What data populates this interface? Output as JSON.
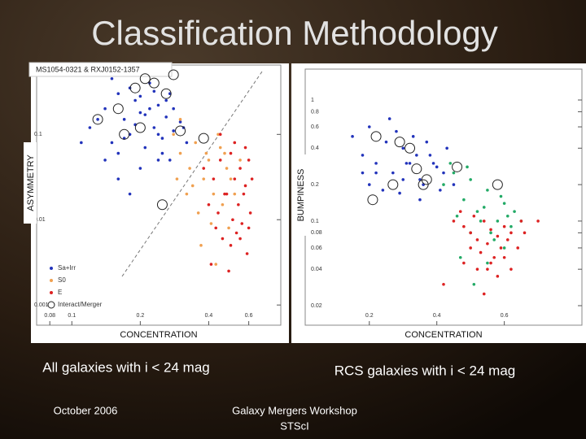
{
  "title": "Classification Methodology",
  "chart_data": [
    {
      "type": "scatter",
      "subtitle": "MS1054-0321 & RXJ0152-1357",
      "xlabel": "CONCENTRATION",
      "ylabel": "ASYMMETRY",
      "xscale": "log",
      "yscale": "log",
      "xlim": [
        0.07,
        0.83
      ],
      "ylim": [
        0.00058,
        0.65
      ],
      "xticks": [
        0.08,
        0.1,
        0.2,
        0.4,
        0.6
      ],
      "yticks": [
        0.001,
        0.01,
        0.1
      ],
      "legend": "lower left",
      "series": [
        {
          "name": "Sa+Irr",
          "color": "#2233bb",
          "marker": "dot",
          "x": [
            0.12,
            0.14,
            0.15,
            0.16,
            0.17,
            0.18,
            0.19,
            0.2,
            0.21,
            0.22,
            0.23,
            0.24,
            0.25,
            0.26,
            0.27,
            0.28,
            0.3,
            0.32,
            0.14,
            0.16,
            0.18,
            0.2,
            0.22,
            0.24,
            0.26,
            0.13,
            0.15,
            0.17,
            0.19,
            0.21,
            0.23,
            0.25,
            0.28,
            0.31,
            0.2,
            0.18,
            0.16,
            0.24,
            0.27,
            0.11
          ],
          "values": [
            0.12,
            0.2,
            0.08,
            0.3,
            0.15,
            0.1,
            0.25,
            0.18,
            0.07,
            0.4,
            0.12,
            0.22,
            0.09,
            0.16,
            0.3,
            0.11,
            0.14,
            0.08,
            0.05,
            0.06,
            0.35,
            0.28,
            0.2,
            0.05,
            0.25,
            0.15,
            0.45,
            0.09,
            0.13,
            0.17,
            0.32,
            0.06,
            0.2,
            0.12,
            0.04,
            0.02,
            0.03,
            0.1,
            0.05,
            0.08
          ]
        },
        {
          "name": "S0",
          "color": "#f0a050",
          "marker": "dot",
          "x": [
            0.28,
            0.3,
            0.33,
            0.35,
            0.38,
            0.4,
            0.42,
            0.45,
            0.48,
            0.5,
            0.32,
            0.36,
            0.41,
            0.46,
            0.52,
            0.3,
            0.34,
            0.39,
            0.44,
            0.55,
            0.37,
            0.43,
            0.49,
            0.29,
            0.47
          ],
          "values": [
            0.1,
            0.06,
            0.04,
            0.08,
            0.03,
            0.05,
            0.02,
            0.07,
            0.04,
            0.03,
            0.02,
            0.012,
            0.009,
            0.015,
            0.02,
            0.15,
            0.025,
            0.06,
            0.1,
            0.05,
            0.005,
            0.003,
            0.008,
            0.03,
            0.06
          ]
        },
        {
          "name": "E",
          "color": "#dd2222",
          "marker": "dot",
          "x": [
            0.38,
            0.42,
            0.45,
            0.48,
            0.5,
            0.52,
            0.55,
            0.58,
            0.6,
            0.62,
            0.4,
            0.44,
            0.47,
            0.51,
            0.54,
            0.57,
            0.61,
            0.43,
            0.46,
            0.5,
            0.53,
            0.56,
            0.59,
            0.41,
            0.49,
            0.55,
            0.6,
            0.45,
            0.52,
            0.58
          ],
          "values": [
            0.04,
            0.03,
            0.05,
            0.02,
            0.06,
            0.03,
            0.04,
            0.025,
            0.05,
            0.03,
            0.015,
            0.012,
            0.02,
            0.01,
            0.015,
            0.02,
            0.012,
            0.008,
            0.006,
            0.005,
            0.007,
            0.009,
            0.004,
            0.003,
            0.0025,
            0.006,
            0.008,
            0.1,
            0.08,
            0.07
          ]
        },
        {
          "name": "Interact/Merger",
          "color": "#222222",
          "marker": "open-circle",
          "x": [
            0.13,
            0.16,
            0.19,
            0.21,
            0.23,
            0.26,
            0.28,
            0.3,
            0.2,
            0.38,
            0.17,
            0.25
          ],
          "values": [
            0.15,
            0.2,
            0.35,
            0.45,
            0.4,
            0.3,
            0.5,
            0.11,
            0.12,
            0.09,
            0.1,
            0.015
          ]
        }
      ]
    },
    {
      "type": "scatter",
      "xlabel": "CONCENTRATION",
      "ylabel": "BUMPINESS",
      "xscale": "linear",
      "yscale": "log",
      "xlim": [
        0.01,
        0.83
      ],
      "ylim": [
        0.0138,
        1.8
      ],
      "xticks": [
        0.2,
        0.4,
        0.6
      ],
      "yticks": [
        0.02,
        0.04,
        0.06,
        0.08,
        0.1,
        0.2,
        0.4,
        0.6,
        0.8,
        1
      ],
      "series": [
        {
          "color": "#2233bb",
          "marker": "dot",
          "x": [
            0.15,
            0.18,
            0.2,
            0.22,
            0.25,
            0.27,
            0.3,
            0.32,
            0.35,
            0.38,
            0.4,
            0.42,
            0.2,
            0.24,
            0.28,
            0.33,
            0.36,
            0.39,
            0.43,
            0.45,
            0.26,
            0.3,
            0.34,
            0.22,
            0.29,
            0.37,
            0.41,
            0.18,
            0.31,
            0.35
          ],
          "values": [
            0.5,
            0.35,
            0.6,
            0.3,
            0.45,
            0.25,
            0.4,
            0.3,
            0.22,
            0.35,
            0.28,
            0.25,
            0.2,
            0.18,
            0.55,
            0.5,
            0.2,
            0.3,
            0.4,
            0.2,
            0.7,
            0.22,
            0.35,
            0.25,
            0.17,
            0.45,
            0.18,
            0.25,
            0.3,
            0.15
          ]
        },
        {
          "color": "#22aa66",
          "marker": "dot",
          "x": [
            0.42,
            0.45,
            0.48,
            0.5,
            0.52,
            0.55,
            0.58,
            0.6,
            0.62,
            0.46,
            0.5,
            0.54,
            0.57,
            0.61,
            0.44,
            0.49,
            0.53,
            0.56,
            0.59,
            0.63,
            0.47,
            0.51,
            0.55,
            0.6,
            0.65
          ],
          "values": [
            0.2,
            0.25,
            0.15,
            0.22,
            0.12,
            0.18,
            0.1,
            0.14,
            0.09,
            0.11,
            0.08,
            0.13,
            0.07,
            0.11,
            0.3,
            0.28,
            0.1,
            0.08,
            0.16,
            0.12,
            0.05,
            0.03,
            0.045,
            0.06,
            0.1
          ]
        },
        {
          "color": "#dd2222",
          "marker": "dot",
          "x": [
            0.45,
            0.48,
            0.5,
            0.52,
            0.54,
            0.56,
            0.58,
            0.6,
            0.62,
            0.65,
            0.5,
            0.53,
            0.55,
            0.57,
            0.59,
            0.61,
            0.48,
            0.52,
            0.56,
            0.6,
            0.64,
            0.47,
            0.51,
            0.55,
            0.58,
            0.62,
            0.7,
            0.42,
            0.66,
            0.54
          ],
          "values": [
            0.1,
            0.09,
            0.08,
            0.07,
            0.1,
            0.085,
            0.075,
            0.09,
            0.08,
            0.1,
            0.06,
            0.055,
            0.065,
            0.05,
            0.06,
            0.07,
            0.045,
            0.04,
            0.045,
            0.05,
            0.06,
            0.12,
            0.11,
            0.04,
            0.035,
            0.04,
            0.1,
            0.03,
            0.08,
            0.025
          ]
        },
        {
          "color": "#222222",
          "marker": "open-circle",
          "x": [
            0.22,
            0.29,
            0.32,
            0.34,
            0.36,
            0.21,
            0.27,
            0.46,
            0.37,
            0.58
          ],
          "values": [
            0.5,
            0.45,
            0.4,
            0.27,
            0.2,
            0.15,
            0.2,
            0.28,
            0.22,
            0.2
          ]
        }
      ]
    }
  ],
  "captions": [
    "All galaxies with i < 24 mag",
    "RCS galaxies with i < 24 mag"
  ],
  "footer": [
    "October 2006",
    "Galaxy Mergers Workshop",
    "STScI"
  ]
}
